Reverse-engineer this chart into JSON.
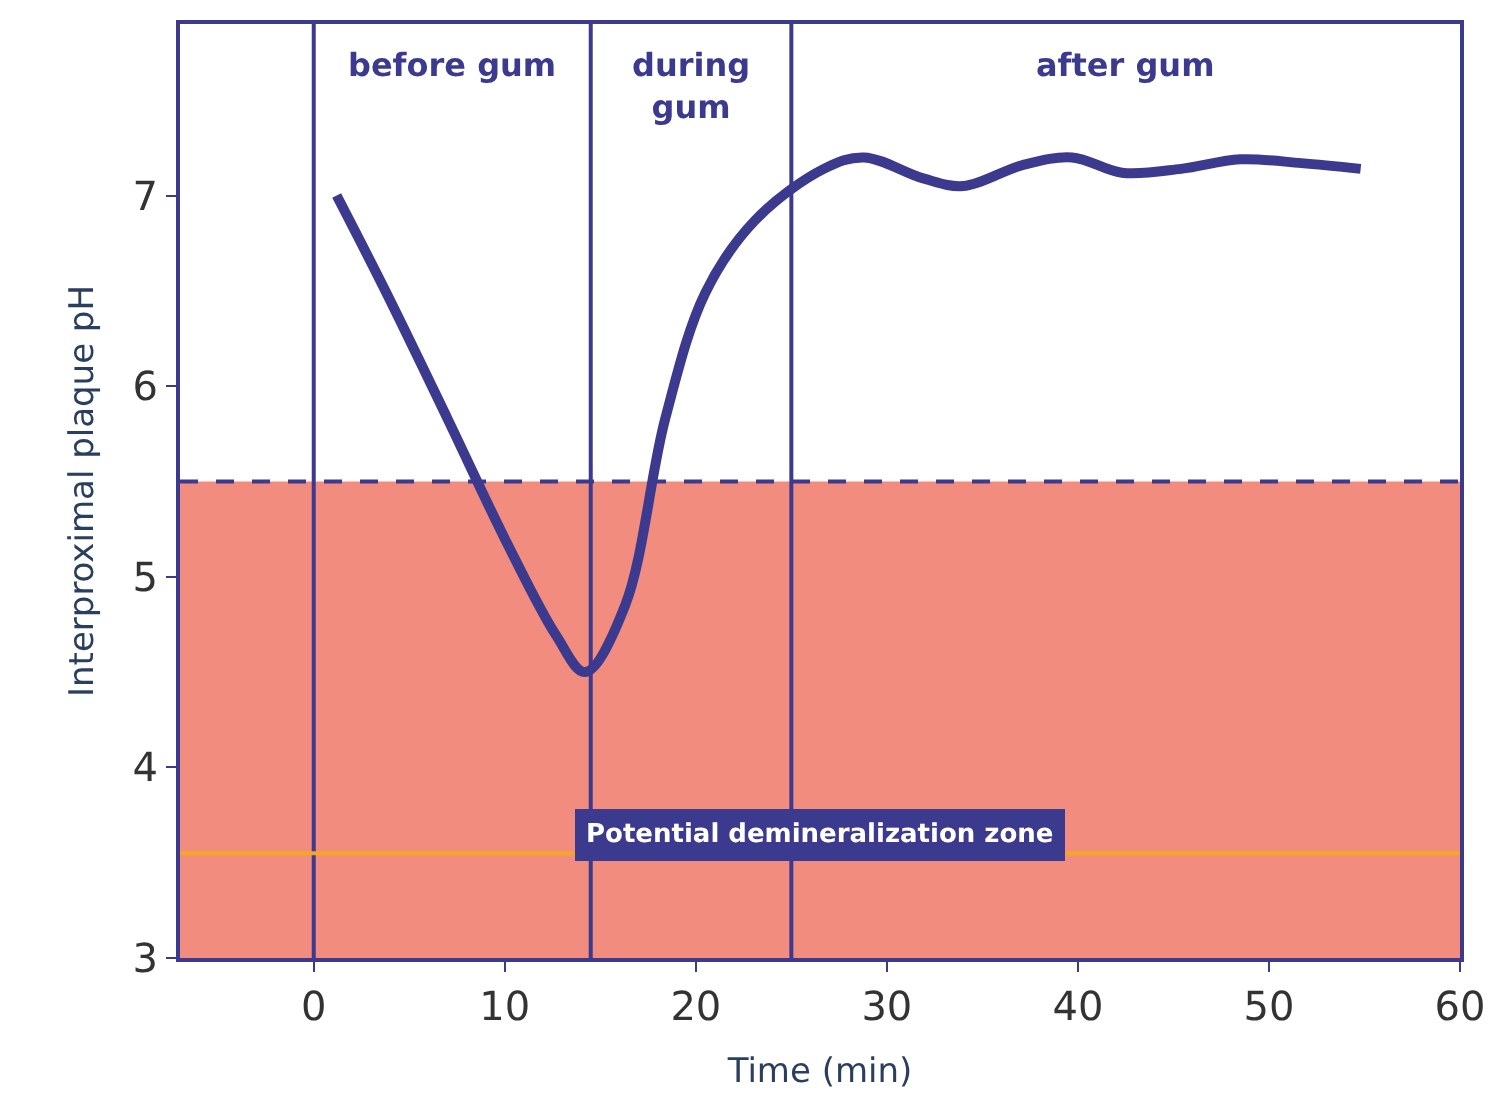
{
  "chart_data": {
    "type": "line",
    "xlabel": "Time (min)",
    "ylabel": "Interproximal plaque pH",
    "x": [
      1.2,
      3.8,
      7,
      10.1,
      12.7,
      14.2,
      16.3,
      18.4,
      20.5,
      23.1,
      26.7,
      28.8,
      31.9,
      34,
      37.1,
      39.7,
      42.3,
      45.4,
      48.5,
      51.7,
      54.8
    ],
    "series": [
      {
        "color": "#3b3a8f",
        "values": [
          7.0,
          6.49,
          5.83,
          5.18,
          4.69,
          4.5,
          4.85,
          5.83,
          6.49,
          6.87,
          7.14,
          7.2,
          7.09,
          7.05,
          7.16,
          7.2,
          7.12,
          7.14,
          7.19,
          7.17,
          7.14
        ]
      }
    ],
    "xlim": [
      -7,
      60
    ],
    "ylim": [
      3,
      7.9
    ],
    "xticks": [
      0,
      10,
      20,
      30,
      40,
      50,
      60
    ],
    "yticks": [
      3,
      4,
      5,
      6,
      7
    ],
    "ref_lines": [
      {
        "axis": "x",
        "value": 0,
        "color": "#3b3a8f"
      },
      {
        "axis": "x",
        "value": 14.5,
        "color": "#3b3a8f"
      },
      {
        "axis": "x",
        "value": 25,
        "color": "#3b3a8f"
      },
      {
        "axis": "y",
        "value": 5.5,
        "color": "#3b3a8f",
        "line_style": "dashed"
      },
      {
        "axis": "y",
        "value": 3.55,
        "color": "#f5a623"
      }
    ],
    "bands": [
      {
        "axis": "y",
        "from": 3,
        "to": 5.5,
        "label": "Potential demineralization zone",
        "color": "#e8402a"
      }
    ],
    "annotations": [
      "before gum",
      "during\ngum",
      "after gum"
    ],
    "grid": false,
    "marker": "none",
    "line_style": "solid"
  }
}
